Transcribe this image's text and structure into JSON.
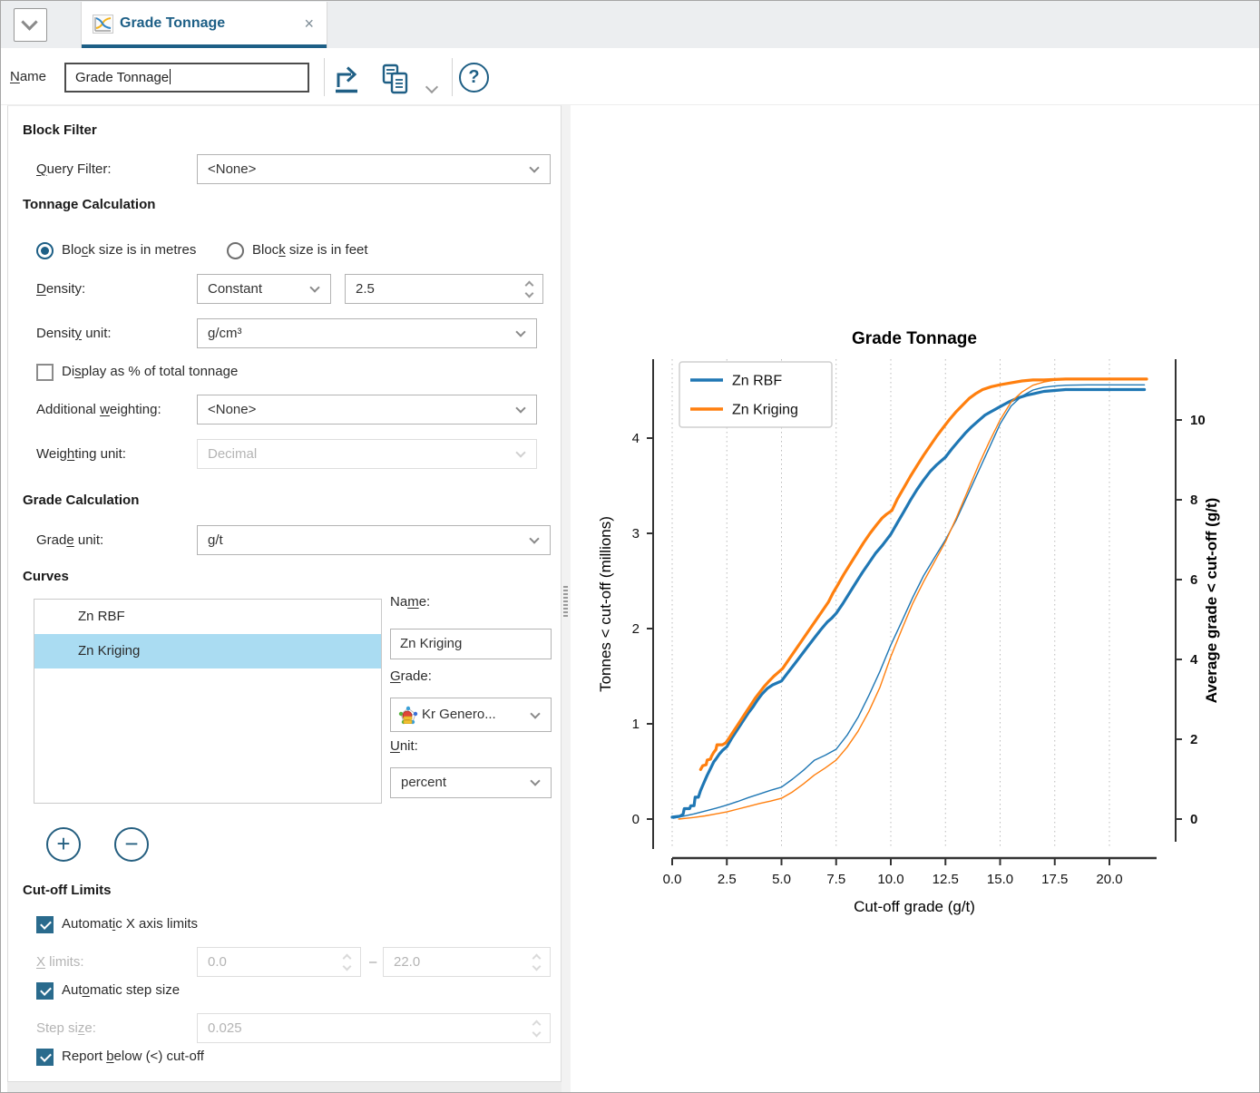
{
  "ui_colors": {
    "accent": "#1d5f86",
    "selection": "#aadcf2",
    "series_blue": "#1f77b4",
    "series_orange": "#ff7f0e"
  },
  "tabbar": {
    "tab": {
      "label": "Grade Tonnage",
      "close": "×"
    }
  },
  "toolbar": {
    "name_label": {
      "pre": "",
      "key": "N",
      "post": "ame"
    },
    "name_value": "Grade Tonnage",
    "help_glyph": "?"
  },
  "form": {
    "block_filter": {
      "header": "Block Filter",
      "query_label": {
        "pre": "",
        "key": "Q",
        "post": "uery Filter:"
      },
      "query_value": "<None>"
    },
    "tonnage": {
      "header": "Tonnage Calculation",
      "radio_metres": {
        "pre": "Blo",
        "key": "c",
        "post": "k size is in metres",
        "selected": true
      },
      "radio_feet": {
        "pre": "Bloc",
        "key": "k",
        "post": " size is in feet",
        "selected": false
      },
      "density_label": {
        "pre": "",
        "key": "D",
        "post": "ensity:"
      },
      "density_mode": "Constant",
      "density_value": "2.5",
      "density_unit_label": {
        "pre": "Densit",
        "key": "y",
        "post": " unit:"
      },
      "density_unit_value": "g/cm³",
      "display_pct": {
        "pre": "Di",
        "key": "s",
        "post": "play as % of total tonnage",
        "checked": false
      },
      "add_weight_label": {
        "pre": "Additional ",
        "key": "w",
        "post": "eighting:"
      },
      "add_weight_value": "<None>",
      "weight_unit_label": {
        "pre": "Weig",
        "key": "h",
        "post": "ting unit:"
      },
      "weight_unit_value": "Decimal",
      "weight_unit_disabled": true
    },
    "grade": {
      "header": "Grade Calculation",
      "grade_unit_label": {
        "pre": "Grad",
        "key": "e",
        "post": " unit:"
      },
      "grade_unit_value": "g/t"
    },
    "curves": {
      "header": "Curves",
      "items": [
        {
          "label": "Zn RBF",
          "selected": false
        },
        {
          "label": "Zn Kriging",
          "selected": true
        }
      ],
      "name_label": {
        "pre": "Na",
        "key": "m",
        "post": "e:"
      },
      "name_value": "Zn Kriging",
      "grade_label": {
        "pre": "",
        "key": "G",
        "post": "rade:"
      },
      "grade_value": "Kr Genero...",
      "unit_label": {
        "pre": "",
        "key": "U",
        "post": "nit:"
      },
      "unit_value": "percent",
      "add_label": "+",
      "remove_label": "−"
    },
    "cutoff": {
      "header": "Cut-off Limits",
      "auto_x": {
        "pre": "Automat",
        "key": "i",
        "post": "c X axis limits",
        "checked": true
      },
      "x_limits_label": {
        "pre": "",
        "key": "X",
        "post": " limits:"
      },
      "x_min": "0.0",
      "x_sep": "–",
      "x_max": "22.0",
      "auto_step": {
        "pre": "Aut",
        "key": "o",
        "post": "matic step size",
        "checked": true
      },
      "step_label": {
        "pre": "Step si",
        "key": "z",
        "post": "e:"
      },
      "step_value": "0.025",
      "report_below": {
        "pre": "Report ",
        "key": "b",
        "post": "elow (<) cut-off",
        "checked": true
      }
    }
  },
  "chart_data": {
    "type": "line",
    "title": "Grade Tonnage",
    "xlabel": "Cut-off grade (g/t)",
    "ylabel_left": "Tonnes < cut-off (millions)",
    "ylabel_right": "Average grade < cut-off (g/t)",
    "xlim": [
      -1.0,
      22.1
    ],
    "x_ticks": [
      0.0,
      2.5,
      5.0,
      7.5,
      10.0,
      12.5,
      15.0,
      17.5,
      20.0
    ],
    "ylim_left": [
      -0.45,
      4.85
    ],
    "y_ticks_left": [
      0,
      1,
      2,
      3,
      4
    ],
    "ylim_right": [
      -1.0,
      11.6
    ],
    "y_ticks_right": [
      0,
      2,
      4,
      6,
      8,
      10
    ],
    "grid": "vertical-dashed",
    "legend": {
      "position": "upper-left",
      "entries": [
        "Zn RBF",
        "Zn Kriging"
      ]
    },
    "series": [
      {
        "name": "Zn RBF",
        "role": "tonnes",
        "axis": "left",
        "color": "#1f77b4",
        "width": 3.2,
        "points": [
          [
            0,
            0.02
          ],
          [
            0.35,
            0.03
          ],
          [
            0.5,
            0.05
          ],
          [
            0.55,
            0.11
          ],
          [
            0.8,
            0.11
          ],
          [
            0.85,
            0.14
          ],
          [
            1.0,
            0.14
          ],
          [
            1.05,
            0.23
          ],
          [
            1.2,
            0.23
          ],
          [
            1.3,
            0.3
          ],
          [
            1.45,
            0.38
          ],
          [
            1.6,
            0.46
          ],
          [
            1.75,
            0.53
          ],
          [
            1.9,
            0.6
          ],
          [
            2.0,
            0.63
          ],
          [
            2.15,
            0.68
          ],
          [
            2.3,
            0.72
          ],
          [
            2.5,
            0.76
          ],
          [
            2.7,
            0.84
          ],
          [
            2.9,
            0.91
          ],
          [
            3.1,
            0.98
          ],
          [
            3.3,
            1.05
          ],
          [
            3.5,
            1.12
          ],
          [
            3.7,
            1.18
          ],
          [
            3.9,
            1.25
          ],
          [
            4.1,
            1.31
          ],
          [
            4.35,
            1.37
          ],
          [
            4.6,
            1.41
          ],
          [
            4.8,
            1.43
          ],
          [
            5.0,
            1.45
          ],
          [
            5.3,
            1.54
          ],
          [
            5.6,
            1.63
          ],
          [
            5.9,
            1.72
          ],
          [
            6.2,
            1.81
          ],
          [
            6.5,
            1.9
          ],
          [
            6.8,
            1.99
          ],
          [
            7.1,
            2.07
          ],
          [
            7.3,
            2.11
          ],
          [
            7.5,
            2.16
          ],
          [
            7.8,
            2.26
          ],
          [
            8.1,
            2.37
          ],
          [
            8.4,
            2.48
          ],
          [
            8.7,
            2.59
          ],
          [
            9.0,
            2.69
          ],
          [
            9.3,
            2.79
          ],
          [
            9.6,
            2.87
          ],
          [
            9.8,
            2.93
          ],
          [
            10.0,
            2.99
          ],
          [
            10.3,
            3.11
          ],
          [
            10.6,
            3.23
          ],
          [
            10.9,
            3.35
          ],
          [
            11.2,
            3.46
          ],
          [
            11.5,
            3.56
          ],
          [
            11.8,
            3.65
          ],
          [
            12.1,
            3.72
          ],
          [
            12.5,
            3.8
          ],
          [
            12.8,
            3.89
          ],
          [
            13.1,
            3.97
          ],
          [
            13.4,
            4.05
          ],
          [
            13.7,
            4.12
          ],
          [
            14.0,
            4.18
          ],
          [
            14.3,
            4.24
          ],
          [
            14.6,
            4.28
          ],
          [
            15.0,
            4.33
          ],
          [
            15.4,
            4.38
          ],
          [
            15.8,
            4.42
          ],
          [
            16.2,
            4.45
          ],
          [
            16.6,
            4.47
          ],
          [
            17.0,
            4.49
          ],
          [
            17.5,
            4.5
          ],
          [
            18.0,
            4.51
          ],
          [
            19.0,
            4.51
          ],
          [
            20.0,
            4.51
          ],
          [
            21.0,
            4.51
          ],
          [
            21.6,
            4.51
          ]
        ]
      },
      {
        "name": "Zn Kriging",
        "role": "tonnes",
        "axis": "left",
        "color": "#ff7f0e",
        "width": 3.2,
        "points": [
          [
            1.3,
            0.52
          ],
          [
            1.4,
            0.56
          ],
          [
            1.55,
            0.57
          ],
          [
            1.6,
            0.62
          ],
          [
            1.75,
            0.63
          ],
          [
            1.8,
            0.66
          ],
          [
            1.9,
            0.7
          ],
          [
            2.0,
            0.73
          ],
          [
            2.05,
            0.78
          ],
          [
            2.3,
            0.78
          ],
          [
            2.45,
            0.8
          ],
          [
            2.6,
            0.85
          ],
          [
            2.8,
            0.92
          ],
          [
            3.0,
            0.99
          ],
          [
            3.2,
            1.06
          ],
          [
            3.4,
            1.13
          ],
          [
            3.6,
            1.2
          ],
          [
            3.8,
            1.27
          ],
          [
            4.0,
            1.33
          ],
          [
            4.2,
            1.39
          ],
          [
            4.4,
            1.44
          ],
          [
            4.65,
            1.5
          ],
          [
            4.85,
            1.54
          ],
          [
            5.05,
            1.58
          ],
          [
            5.35,
            1.68
          ],
          [
            5.65,
            1.78
          ],
          [
            5.95,
            1.88
          ],
          [
            6.25,
            1.98
          ],
          [
            6.55,
            2.08
          ],
          [
            6.85,
            2.18
          ],
          [
            7.15,
            2.28
          ],
          [
            7.35,
            2.37
          ],
          [
            7.55,
            2.45
          ],
          [
            7.85,
            2.57
          ],
          [
            8.15,
            2.68
          ],
          [
            8.45,
            2.79
          ],
          [
            8.75,
            2.9
          ],
          [
            9.05,
            3.0
          ],
          [
            9.35,
            3.09
          ],
          [
            9.6,
            3.16
          ],
          [
            9.8,
            3.2
          ],
          [
            10.05,
            3.24
          ],
          [
            10.3,
            3.36
          ],
          [
            10.6,
            3.48
          ],
          [
            10.9,
            3.6
          ],
          [
            11.2,
            3.71
          ],
          [
            11.5,
            3.82
          ],
          [
            11.8,
            3.92
          ],
          [
            12.1,
            4.02
          ],
          [
            12.4,
            4.11
          ],
          [
            12.7,
            4.2
          ],
          [
            13.0,
            4.28
          ],
          [
            13.3,
            4.35
          ],
          [
            13.6,
            4.42
          ],
          [
            13.9,
            4.47
          ],
          [
            14.2,
            4.51
          ],
          [
            14.6,
            4.54
          ],
          [
            15.0,
            4.56
          ],
          [
            15.5,
            4.58
          ],
          [
            16.0,
            4.6
          ],
          [
            16.5,
            4.61
          ],
          [
            17.0,
            4.61
          ],
          [
            18.0,
            4.62
          ],
          [
            19.0,
            4.62
          ],
          [
            20.0,
            4.62
          ],
          [
            21.0,
            4.62
          ],
          [
            21.7,
            4.62
          ]
        ]
      },
      {
        "name": "Zn RBF (average grade)",
        "role": "avg-grade",
        "axis": "right",
        "color": "#1f77b4",
        "width": 1.4,
        "points": [
          [
            0.05,
            0.02
          ],
          [
            0.5,
            0.07
          ],
          [
            1.0,
            0.13
          ],
          [
            1.5,
            0.2
          ],
          [
            2.0,
            0.27
          ],
          [
            2.5,
            0.35
          ],
          [
            3.0,
            0.44
          ],
          [
            3.5,
            0.54
          ],
          [
            4.0,
            0.63
          ],
          [
            4.5,
            0.72
          ],
          [
            5.0,
            0.8
          ],
          [
            5.5,
            1.0
          ],
          [
            6.0,
            1.22
          ],
          [
            6.5,
            1.47
          ],
          [
            7.0,
            1.6
          ],
          [
            7.5,
            1.75
          ],
          [
            8.0,
            2.1
          ],
          [
            8.5,
            2.55
          ],
          [
            9.0,
            3.1
          ],
          [
            9.5,
            3.7
          ],
          [
            10.0,
            4.36
          ],
          [
            10.5,
            4.95
          ],
          [
            11.0,
            5.55
          ],
          [
            11.5,
            6.1
          ],
          [
            12.0,
            6.55
          ],
          [
            12.5,
            7.0
          ],
          [
            13.0,
            7.5
          ],
          [
            13.5,
            8.1
          ],
          [
            14.0,
            8.7
          ],
          [
            14.5,
            9.3
          ],
          [
            15.0,
            9.9
          ],
          [
            15.5,
            10.35
          ],
          [
            16.0,
            10.6
          ],
          [
            16.5,
            10.75
          ],
          [
            17.0,
            10.82
          ],
          [
            17.5,
            10.85
          ],
          [
            18.0,
            10.87
          ],
          [
            19.0,
            10.88
          ],
          [
            20.0,
            10.88
          ],
          [
            21.6,
            10.88
          ]
        ]
      },
      {
        "name": "Zn Kriging (average grade)",
        "role": "avg-grade",
        "axis": "right",
        "color": "#ff7f0e",
        "width": 1.4,
        "points": [
          [
            0.3,
            0.0
          ],
          [
            1.0,
            0.04
          ],
          [
            1.5,
            0.08
          ],
          [
            2.0,
            0.13
          ],
          [
            2.5,
            0.18
          ],
          [
            3.0,
            0.25
          ],
          [
            3.5,
            0.32
          ],
          [
            4.0,
            0.39
          ],
          [
            4.5,
            0.45
          ],
          [
            5.0,
            0.52
          ],
          [
            5.5,
            0.68
          ],
          [
            6.0,
            0.88
          ],
          [
            6.5,
            1.1
          ],
          [
            7.0,
            1.28
          ],
          [
            7.5,
            1.48
          ],
          [
            8.0,
            1.8
          ],
          [
            8.5,
            2.2
          ],
          [
            9.0,
            2.7
          ],
          [
            9.5,
            3.3
          ],
          [
            10.0,
            4.07
          ],
          [
            10.5,
            4.75
          ],
          [
            11.0,
            5.4
          ],
          [
            11.5,
            5.95
          ],
          [
            12.0,
            6.45
          ],
          [
            12.5,
            6.95
          ],
          [
            13.0,
            7.55
          ],
          [
            13.5,
            8.2
          ],
          [
            14.0,
            8.85
          ],
          [
            14.5,
            9.45
          ],
          [
            15.0,
            10.0
          ],
          [
            15.5,
            10.45
          ],
          [
            16.0,
            10.7
          ],
          [
            16.5,
            10.87
          ],
          [
            17.0,
            10.95
          ],
          [
            17.5,
            11.0
          ],
          [
            18.0,
            11.02
          ],
          [
            19.0,
            11.03
          ],
          [
            20.0,
            11.03
          ],
          [
            21.7,
            11.03
          ]
        ]
      }
    ]
  }
}
